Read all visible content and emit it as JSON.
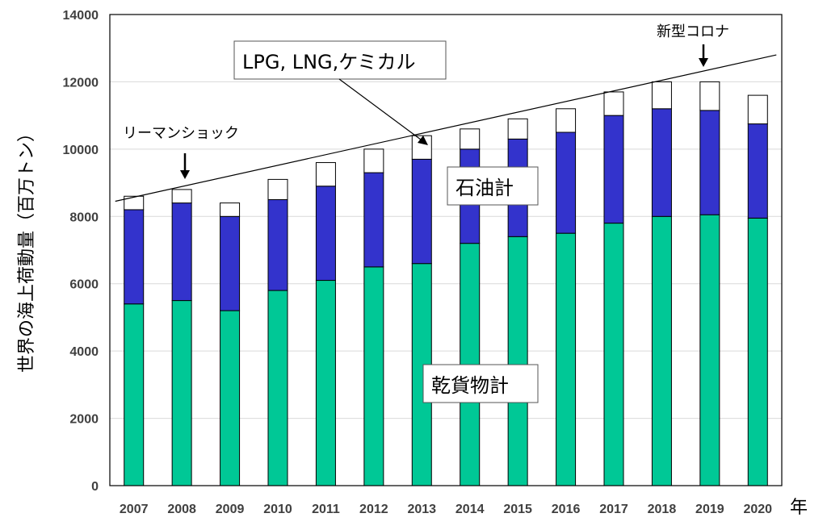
{
  "chart_data": {
    "type": "bar",
    "stacked": true,
    "ylabel": "世界の海上荷動量（百万トン）",
    "xunit": "年",
    "ylim": [
      0,
      14000
    ],
    "yticks": [
      0,
      2000,
      4000,
      6000,
      8000,
      10000,
      12000,
      14000
    ],
    "grid": true,
    "categories": [
      "2007",
      "2008",
      "2009",
      "2010",
      "2011",
      "2012",
      "2013",
      "2014",
      "2015",
      "2016",
      "2017",
      "2018",
      "2019",
      "2020"
    ],
    "series": [
      {
        "name": "乾貨物計",
        "color": "#00c896",
        "values": [
          5400,
          5500,
          5200,
          5800,
          6100,
          6500,
          6600,
          7200,
          7400,
          7500,
          7800,
          8000,
          8050,
          7950
        ]
      },
      {
        "name": "石油計",
        "color": "#3333cc",
        "values": [
          2800,
          2900,
          2800,
          2700,
          2800,
          2800,
          3100,
          2800,
          2900,
          3000,
          3200,
          3200,
          3100,
          2800
        ]
      },
      {
        "name": "LPG, LNG,ケミカル",
        "color": "#ffffff",
        "values": [
          400,
          400,
          400,
          600,
          700,
          700,
          700,
          600,
          600,
          700,
          700,
          800,
          850,
          850
        ]
      }
    ],
    "trendline": {
      "from": [
        "2007",
        8450
      ],
      "to": [
        "2020",
        12800
      ]
    },
    "annotations": {
      "lehman": "リーマンショック",
      "corona": "新型コロナ"
    }
  }
}
